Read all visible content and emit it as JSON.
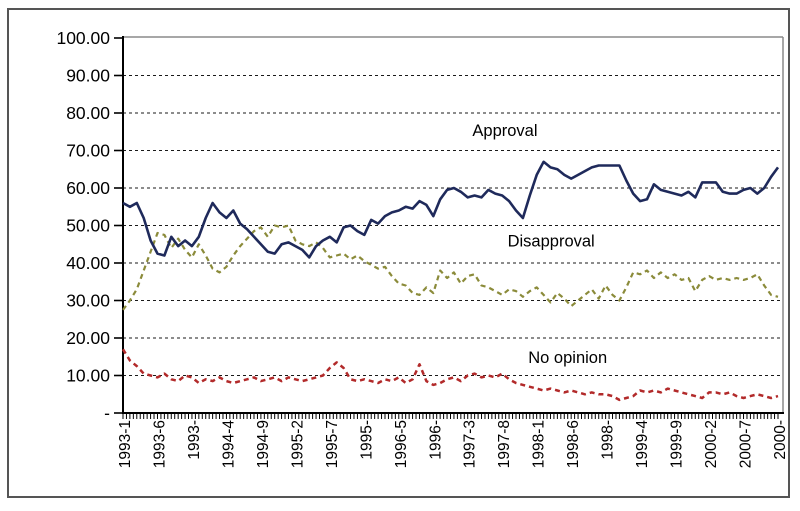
{
  "frame": {
    "border_color": "#555555",
    "plot_border_color": "#8a8a8a",
    "axis_color": "#000000",
    "background": "#ffffff"
  },
  "chart_data": {
    "type": "line",
    "title": "",
    "xlabel": "",
    "ylabel": "",
    "ylim": [
      0,
      100
    ],
    "grid": "horizontal-dashed",
    "legend_position": "inline-annotations",
    "months_count": 96,
    "y_ticks": [
      {
        "value": 100,
        "label": "100.00"
      },
      {
        "value": 90,
        "label": "90.00"
      },
      {
        "value": 80,
        "label": "80.00"
      },
      {
        "value": 70,
        "label": "70.00"
      },
      {
        "value": 60,
        "label": "60.00"
      },
      {
        "value": 50,
        "label": "50.00"
      },
      {
        "value": 40,
        "label": "40.00"
      },
      {
        "value": 30,
        "label": "30.00"
      },
      {
        "value": 20,
        "label": "20.00"
      },
      {
        "value": 10,
        "label": "10.00"
      },
      {
        "value": 0,
        "label": "-"
      }
    ],
    "x_ticks": [
      {
        "month_index": 0,
        "label": "1993-1"
      },
      {
        "month_index": 5,
        "label": "1993-6"
      },
      {
        "month_index": 10,
        "label": "1993-"
      },
      {
        "month_index": 15,
        "label": "1994-4"
      },
      {
        "month_index": 20,
        "label": "1994-9"
      },
      {
        "month_index": 25,
        "label": "1995-2"
      },
      {
        "month_index": 30,
        "label": "1995-7"
      },
      {
        "month_index": 35,
        "label": "1995-"
      },
      {
        "month_index": 40,
        "label": "1996-5"
      },
      {
        "month_index": 45,
        "label": "1996-"
      },
      {
        "month_index": 50,
        "label": "1997-3"
      },
      {
        "month_index": 55,
        "label": "1997-8"
      },
      {
        "month_index": 60,
        "label": "1998-1"
      },
      {
        "month_index": 65,
        "label": "1998-6"
      },
      {
        "month_index": 70,
        "label": "1998-"
      },
      {
        "month_index": 75,
        "label": "1999-4"
      },
      {
        "month_index": 80,
        "label": "1999-9"
      },
      {
        "month_index": 85,
        "label": "2000-2"
      },
      {
        "month_index": 90,
        "label": "2000-7"
      },
      {
        "month_index": 95,
        "label": "2000-"
      }
    ],
    "series": [
      {
        "name": "Approval",
        "color": "#1f2a5b",
        "style": "solid",
        "stroke_width": 2.6,
        "values": [
          56,
          55,
          56,
          52,
          46,
          42.5,
          42,
          47,
          44.5,
          46,
          44.5,
          47,
          52,
          56,
          53.5,
          52,
          54,
          50.5,
          49,
          47,
          45,
          43,
          42.5,
          45,
          45.5,
          44.5,
          43.5,
          41.5,
          44.5,
          46,
          47,
          45.5,
          49.5,
          50,
          48.5,
          47.5,
          51.5,
          50.5,
          52.5,
          53.5,
          54,
          55,
          54.5,
          56.5,
          55.5,
          52.5,
          57,
          59.5,
          60,
          59,
          57.5,
          58,
          57.5,
          59.5,
          58.5,
          58,
          56.5,
          54,
          52,
          58,
          63.5,
          67,
          65.5,
          65,
          63.5,
          62.5,
          63.5,
          64.5,
          65.5,
          66,
          66,
          66,
          66,
          62,
          58.5,
          56.5,
          57,
          61,
          59.5,
          59,
          58.5,
          58,
          59,
          57.5,
          61.5,
          61.5,
          61.5,
          59,
          58.5,
          58.5,
          59.5,
          60,
          58.5,
          60,
          63,
          65.5
        ]
      },
      {
        "name": "Disapproval",
        "color": "#8b8b3a",
        "style": "dashed",
        "stroke_width": 2.2,
        "values": [
          27.5,
          30,
          33,
          38,
          43,
          48,
          47.5,
          44,
          46.5,
          43.5,
          41.5,
          45,
          42,
          38.5,
          37.5,
          39,
          42,
          44.5,
          46.5,
          48.5,
          49.5,
          47,
          50,
          49.5,
          50,
          46,
          45,
          44.5,
          45.5,
          44,
          41.5,
          42,
          42.5,
          41,
          42,
          40.5,
          39.5,
          38.5,
          39,
          36.5,
          34.5,
          34,
          32,
          31.5,
          33.5,
          32,
          38,
          36,
          37.5,
          34.5,
          36.5,
          37,
          34,
          33.5,
          32.5,
          31.5,
          33,
          32.5,
          31,
          32.5,
          33.5,
          31.5,
          29.5,
          32,
          30.5,
          28.5,
          30,
          31.5,
          33,
          30.5,
          34,
          31.5,
          30,
          33.5,
          37.5,
          37,
          38,
          36,
          37.5,
          36,
          37,
          35.5,
          36,
          32.5,
          35.5,
          36.5,
          35.5,
          36,
          35.5,
          36,
          35.5,
          36,
          37,
          34,
          31.5,
          31
        ]
      },
      {
        "name": "No opinion",
        "color": "#b22a2a",
        "style": "dashed",
        "stroke_width": 2.5,
        "values": [
          17,
          14,
          12.5,
          10.5,
          10,
          9.5,
          10.5,
          9,
          8.5,
          10,
          9.5,
          8,
          9,
          8.5,
          9.5,
          8.5,
          8,
          8.5,
          9,
          9.5,
          8.5,
          9,
          9.5,
          8.5,
          9.5,
          9,
          8.5,
          9,
          9.5,
          10,
          12,
          13.5,
          12,
          9,
          8.5,
          9,
          8.5,
          8,
          9,
          8.5,
          9.5,
          8,
          9,
          13,
          8.5,
          7.5,
          8,
          9,
          9.5,
          8.5,
          10,
          10.5,
          9.5,
          10,
          9.5,
          10.5,
          9,
          8,
          7.5,
          7,
          6.5,
          6,
          6.5,
          6,
          5.5,
          6,
          5.5,
          5,
          5.5,
          5,
          5,
          4.5,
          3.5,
          4,
          4.5,
          6,
          5.5,
          6,
          5.5,
          6.5,
          6,
          5.5,
          5,
          4.5,
          4,
          5.5,
          5.5,
          5,
          5.5,
          4.5,
          4,
          4.5,
          5,
          4.5,
          4,
          4.5
        ]
      }
    ],
    "annotations": [
      {
        "text": "Approval",
        "x_month": 55.4,
        "y_value": 75.5
      },
      {
        "text": "Disapproval",
        "x_month": 62.1,
        "y_value": 46.0
      },
      {
        "text": "No opinion",
        "x_month": 64.5,
        "y_value": 15.0
      }
    ]
  }
}
